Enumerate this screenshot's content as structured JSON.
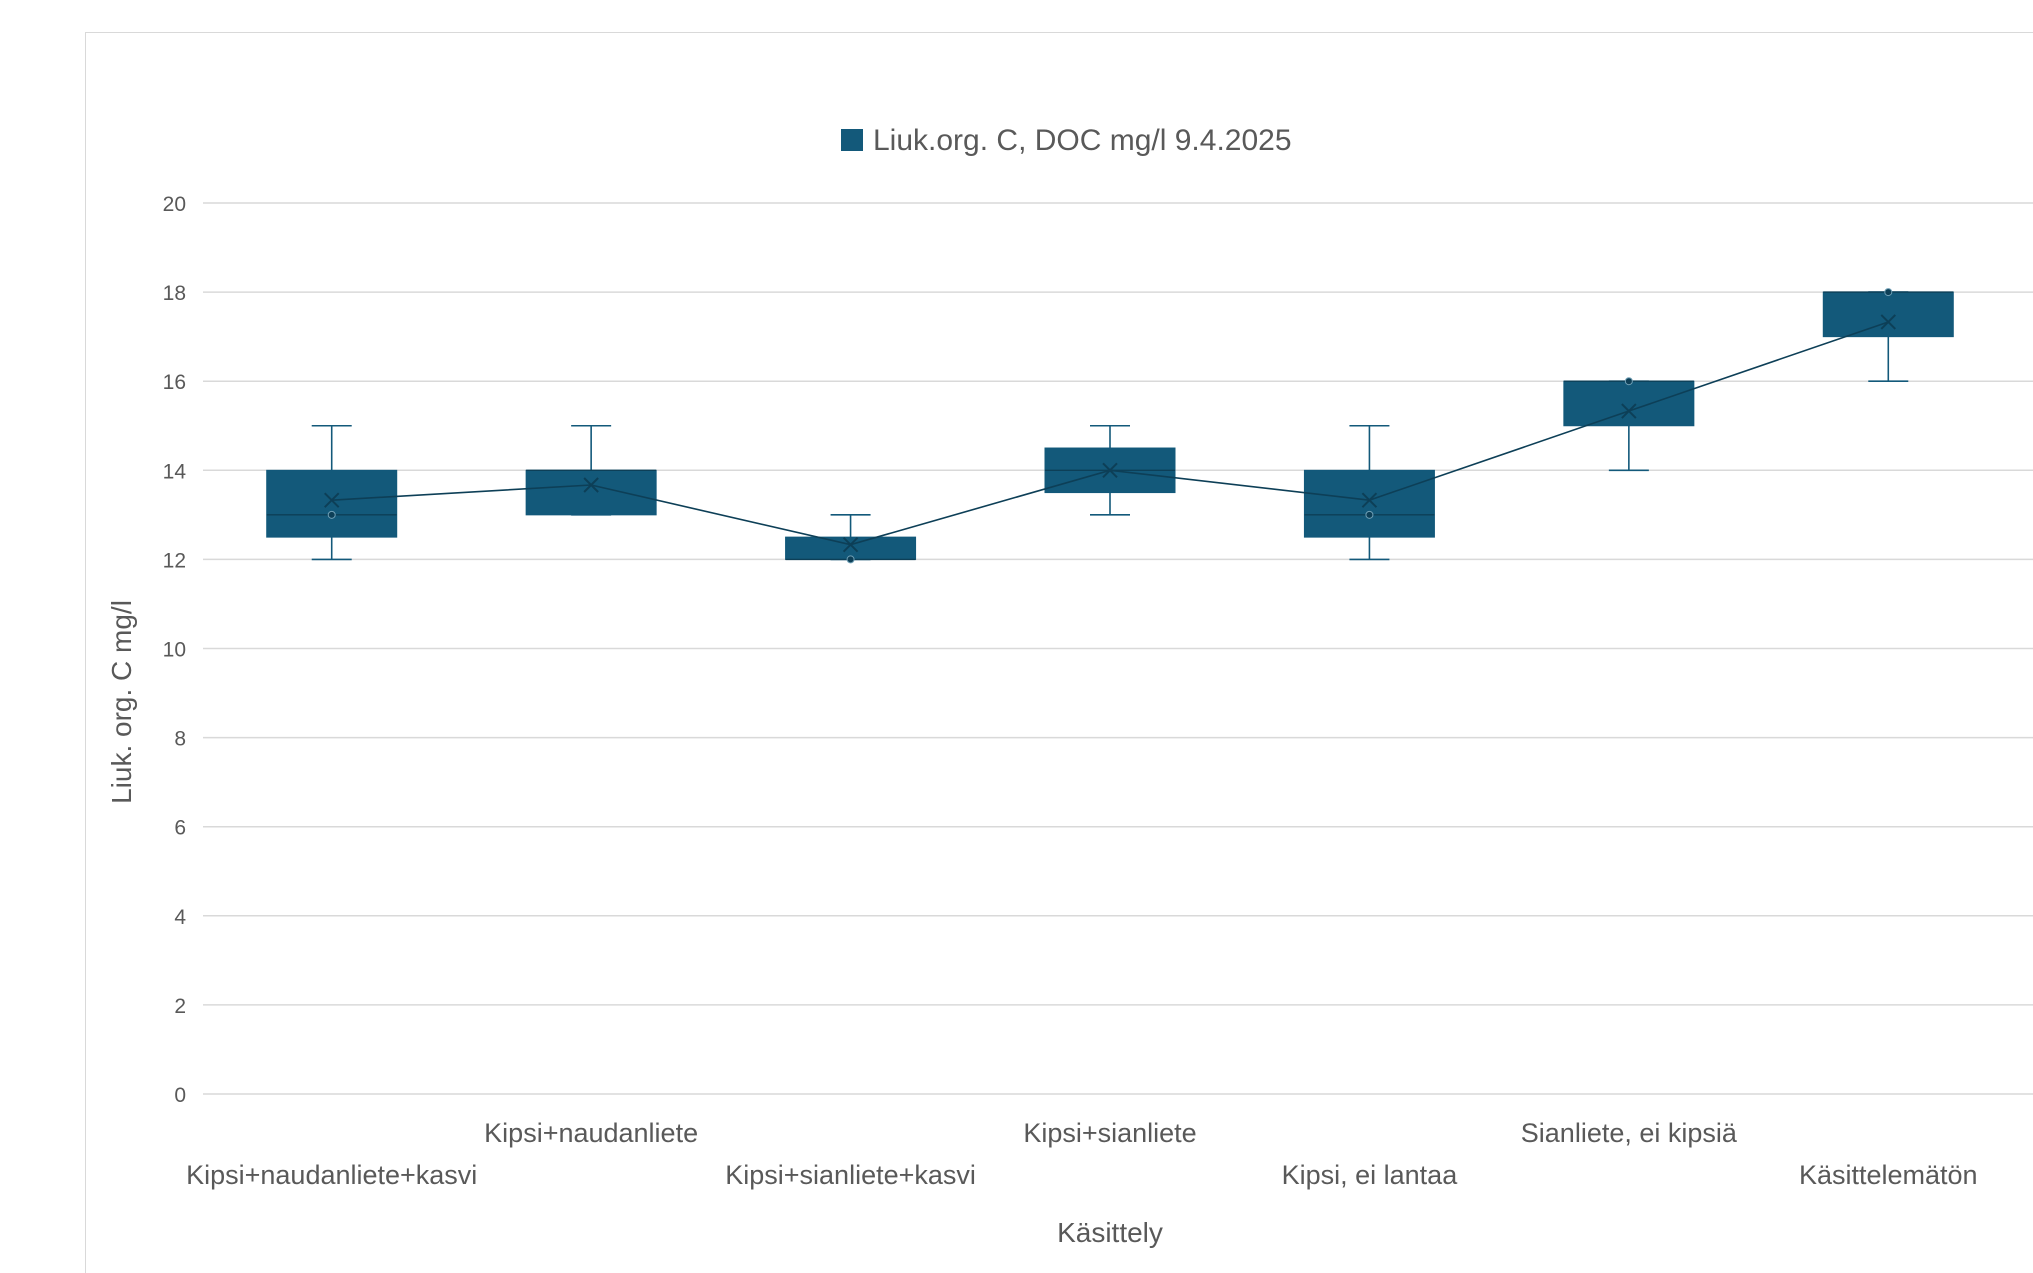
{
  "chart_data": {
    "type": "box",
    "legend": {
      "label": "Liuk.org. C, DOC mg/l 9.4.2025",
      "position": "top",
      "color": "#13597a"
    },
    "xlabel": "Käsittely",
    "ylabel": "Liuk. org. C mg/l",
    "ylim": [
      0,
      20
    ],
    "yticks": [
      0,
      2,
      4,
      6,
      8,
      10,
      12,
      14,
      16,
      18,
      20
    ],
    "grid": true,
    "categories": [
      "Kipsi+naudanliete+kasvi",
      "Kipsi+naudanliete",
      "Kipsi+sianliete+kasvi",
      "Kipsi+sianliete",
      "Kipsi, ei lantaa",
      "Sianliete, ei kipsiä",
      "Käsittelemätön"
    ],
    "boxes": [
      {
        "min": 12,
        "q1": 12.5,
        "median": 13,
        "q3": 14,
        "max": 15,
        "mean": 13.33,
        "points": [
          13
        ]
      },
      {
        "min": 13,
        "q1": 13,
        "median": 14,
        "q3": 14,
        "max": 15,
        "mean": 13.67,
        "points": []
      },
      {
        "min": 12,
        "q1": 12,
        "median": 12,
        "q3": 12.5,
        "max": 13,
        "mean": 12.33,
        "points": [
          12
        ]
      },
      {
        "min": 13,
        "q1": 13.5,
        "median": 14,
        "q3": 14.5,
        "max": 15,
        "mean": 14,
        "points": []
      },
      {
        "min": 12,
        "q1": 12.5,
        "median": 13,
        "q3": 14,
        "max": 15,
        "mean": 13.33,
        "points": [
          13
        ]
      },
      {
        "min": 14,
        "q1": 15,
        "median": 16,
        "q3": 16,
        "max": 16,
        "mean": 15.33,
        "points": [
          16
        ]
      },
      {
        "min": 16,
        "q1": 17,
        "median": 18,
        "q3": 18,
        "max": 18,
        "mean": 17.33,
        "points": [
          18
        ]
      }
    ],
    "mean_line": true
  }
}
